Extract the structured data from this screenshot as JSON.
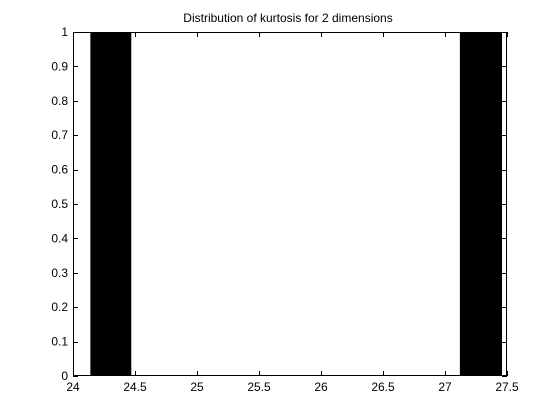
{
  "chart_data": {
    "type": "bar",
    "title": "Distribution of kurtosis for 2 dimensions",
    "xlabel": "",
    "ylabel": "",
    "xlim": [
      24,
      27.5
    ],
    "ylim": [
      0,
      1
    ],
    "xticks": [
      24,
      24.5,
      25,
      25.5,
      26,
      26.5,
      27,
      27.5
    ],
    "xtick_labels": [
      "24",
      "24.5",
      "25",
      "25.5",
      "26",
      "26.5",
      "27",
      "27.5"
    ],
    "yticks": [
      0,
      0.1,
      0.2,
      0.3,
      0.4,
      0.5,
      0.6,
      0.7,
      0.8,
      0.9,
      1
    ],
    "ytick_labels": [
      "0",
      "0.1",
      "0.2",
      "0.3",
      "0.4",
      "0.5",
      "0.6",
      "0.7",
      "0.8",
      "0.9",
      "1"
    ],
    "bars": [
      {
        "x_start": 24.14,
        "x_end": 24.47,
        "value": 1
      },
      {
        "x_start": 27.12,
        "x_end": 27.46,
        "value": 1
      }
    ],
    "bar_color": "#000000",
    "grid": false,
    "legend": "none"
  }
}
